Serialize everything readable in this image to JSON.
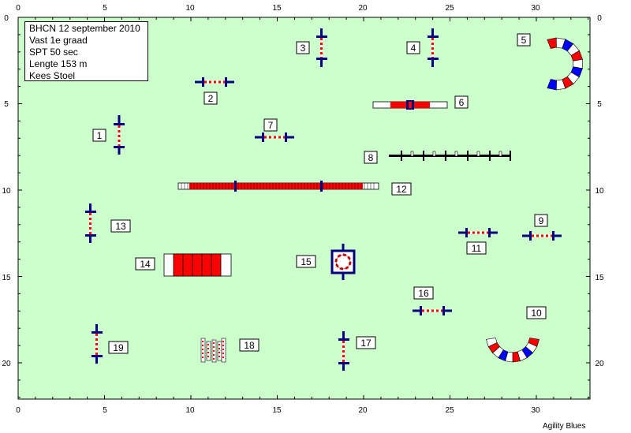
{
  "course": {
    "title": "BHCN 12 september 2010",
    "class": "Vast 1e graad",
    "spt": "SPT 50 sec",
    "length": "Lengte 153 m",
    "judge": "Kees Stoel"
  },
  "footer": "Agility Blues",
  "axis": {
    "x_ticks": [
      "0",
      "5",
      "10",
      "15",
      "20",
      "25",
      "30"
    ],
    "y_ticks": [
      "0",
      "5",
      "10",
      "15",
      "20"
    ]
  },
  "colors": {
    "field": "#ccffcc",
    "bar_dark": "#000080",
    "pole_red": "#ff0000",
    "tunnel_blue": "#0000ff"
  },
  "obstacles": [
    {
      "number": "1",
      "type": "hurdle"
    },
    {
      "number": "2",
      "type": "hurdle"
    },
    {
      "number": "3",
      "type": "hurdle"
    },
    {
      "number": "4",
      "type": "hurdle"
    },
    {
      "number": "5",
      "type": "tunnel"
    },
    {
      "number": "6",
      "type": "seesaw"
    },
    {
      "number": "7",
      "type": "hurdle"
    },
    {
      "number": "8",
      "type": "weave poles"
    },
    {
      "number": "9",
      "type": "hurdle"
    },
    {
      "number": "10",
      "type": "tunnel"
    },
    {
      "number": "11",
      "type": "hurdle"
    },
    {
      "number": "12",
      "type": "dog walk"
    },
    {
      "number": "13",
      "type": "hurdle"
    },
    {
      "number": "14",
      "type": "collapsed tunnel"
    },
    {
      "number": "15",
      "type": "tire"
    },
    {
      "number": "16",
      "type": "hurdle"
    },
    {
      "number": "17",
      "type": "hurdle"
    },
    {
      "number": "18",
      "type": "long jump"
    },
    {
      "number": "19",
      "type": "hurdle"
    }
  ]
}
